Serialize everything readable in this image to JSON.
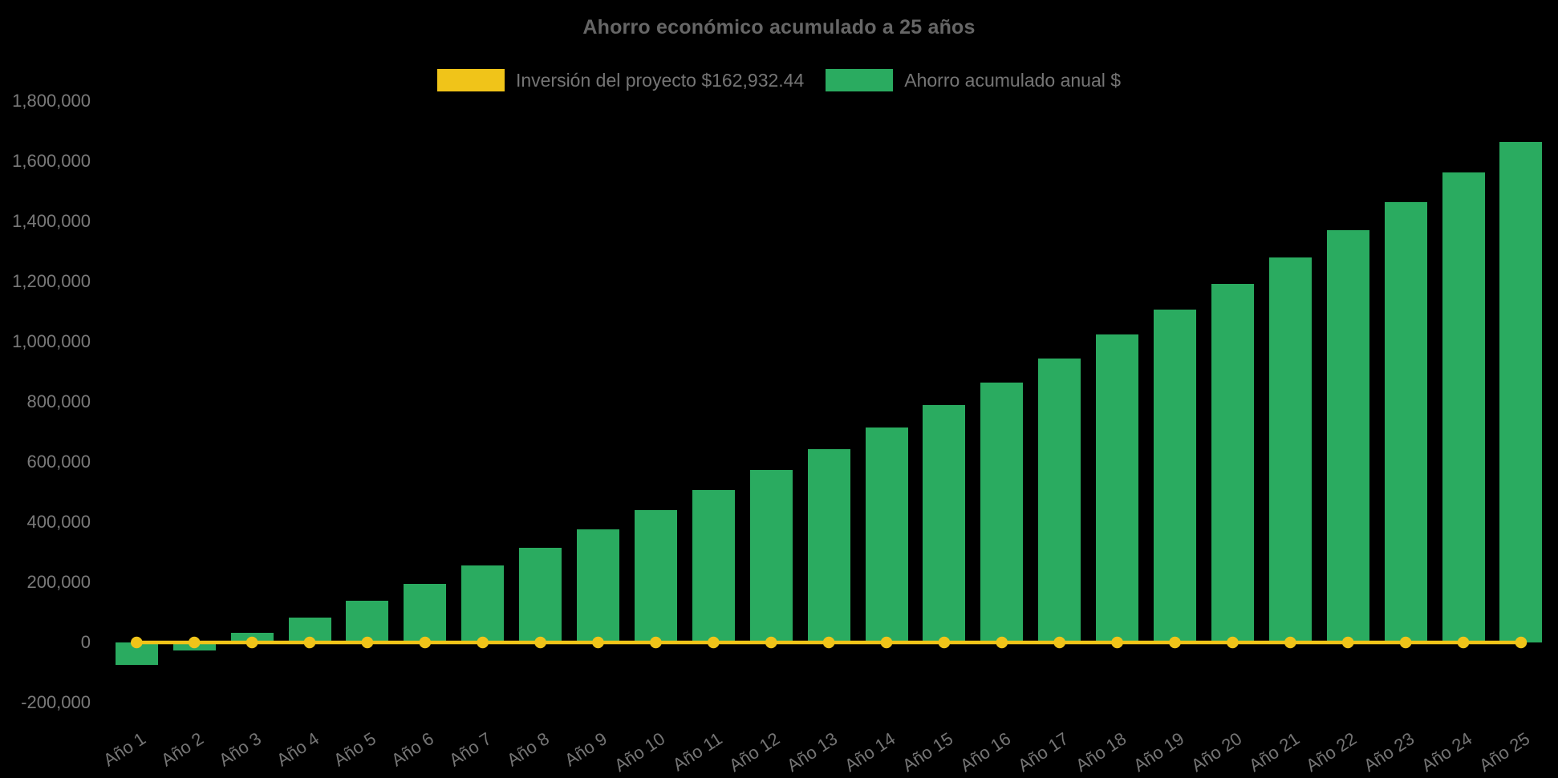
{
  "colors": {
    "background": "#000000",
    "bar_green": "#2AAB60",
    "line_yellow": "#F0C419",
    "title_text": "#666666",
    "axis_text": "#757575"
  },
  "chart_data": {
    "type": "bar",
    "title": "Ahorro económico acumulado a 25 años",
    "categories": [
      "Año 1",
      "Año 2",
      "Año 3",
      "Año 4",
      "Año 5",
      "Año 6",
      "Año 7",
      "Año 8",
      "Año 9",
      "Año 10",
      "Año 11",
      "Año 12",
      "Año 13",
      "Año 14",
      "Año 15",
      "Año 16",
      "Año 17",
      "Año 18",
      "Año 19",
      "Año 20",
      "Año 21",
      "Año 22",
      "Año 23",
      "Año 24",
      "Año 25"
    ],
    "series": [
      {
        "name": "Inversión del proyecto $162,932.44",
        "type": "line",
        "color": "#F0C419",
        "marker": "circle",
        "constant_value": 0,
        "values": [
          0,
          0,
          0,
          0,
          0,
          0,
          0,
          0,
          0,
          0,
          0,
          0,
          0,
          0,
          0,
          0,
          0,
          0,
          0,
          0,
          0,
          0,
          0,
          0,
          0
        ]
      },
      {
        "name": "Ahorro acumulado anual $",
        "type": "bar",
        "color": "#2AAB60",
        "values": [
          -75000,
          -26000,
          32000,
          83000,
          139000,
          195000,
          255000,
          314000,
          375000,
          440000,
          507000,
          573000,
          643000,
          714000,
          790000,
          863000,
          943000,
          1024000,
          1107000,
          1192000,
          1280000,
          1371000,
          1465000,
          1563000,
          1664000
        ]
      }
    ],
    "ylim": [
      -200000,
      1800000
    ],
    "ytick_step": 200000,
    "yticks": [
      {
        "value": -200000,
        "label": "-200,000"
      },
      {
        "value": 0,
        "label": "0"
      },
      {
        "value": 200000,
        "label": "200,000"
      },
      {
        "value": 400000,
        "label": "400,000"
      },
      {
        "value": 600000,
        "label": "600,000"
      },
      {
        "value": 800000,
        "label": "800,000"
      },
      {
        "value": 1000000,
        "label": "1,000,000"
      },
      {
        "value": 1200000,
        "label": "1,200,000"
      },
      {
        "value": 1400000,
        "label": "1,400,000"
      },
      {
        "value": 1600000,
        "label": "1,600,000"
      },
      {
        "value": 1800000,
        "label": "1,800,000"
      }
    ],
    "grid": false,
    "legend_position": "top",
    "xlabel_rotation_deg": -33,
    "investment_amount_in_legend": "$162,932.44"
  }
}
